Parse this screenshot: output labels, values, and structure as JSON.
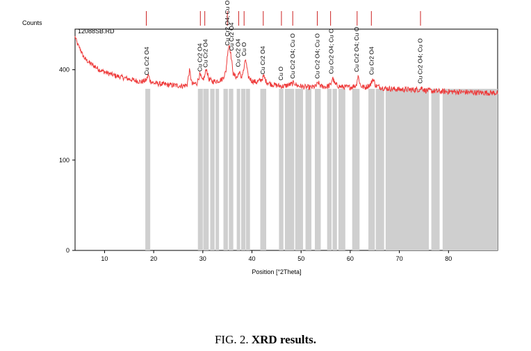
{
  "figure": {
    "caption_prefix": "FIG. 2.",
    "caption_title": "XRD results."
  },
  "chart_data": {
    "type": "line",
    "file_label": "12088SB.RD",
    "xlabel": "Position [°2Theta]",
    "ylabel": "Counts",
    "xlim": [
      4,
      90
    ],
    "ylim": [
      0,
      600
    ],
    "y_scale": "sqrt",
    "x_ticks": [
      10,
      20,
      30,
      40,
      50,
      60,
      70,
      80
    ],
    "y_ticks": [
      0,
      100,
      400
    ],
    "colors": {
      "pattern": "#ee3b3b",
      "reference_bars": "#cfcfcf",
      "markers": "#cc2222"
    },
    "pattern_points": [
      [
        4.0,
        560
      ],
      [
        4.5,
        520
      ],
      [
        5.0,
        500
      ],
      [
        5.5,
        470
      ],
      [
        6.0,
        450
      ],
      [
        7.0,
        430
      ],
      [
        8.0,
        415
      ],
      [
        9.0,
        400
      ],
      [
        10,
        390
      ],
      [
        12,
        375
      ],
      [
        14,
        365
      ],
      [
        16,
        355
      ],
      [
        17.5,
        348
      ],
      [
        18.5,
        355
      ],
      [
        18.9,
        378
      ],
      [
        19.3,
        352
      ],
      [
        20,
        343
      ],
      [
        22,
        338
      ],
      [
        24,
        334
      ],
      [
        26,
        332
      ],
      [
        26.8,
        336
      ],
      [
        27.3,
        398
      ],
      [
        27.8,
        338
      ],
      [
        28.8,
        343
      ],
      [
        29.4,
        380
      ],
      [
        29.9,
        352
      ],
      [
        30.4,
        372
      ],
      [
        30.7,
        408
      ],
      [
        31.2,
        360
      ],
      [
        32,
        350
      ],
      [
        33,
        352
      ],
      [
        34,
        360
      ],
      [
        34.7,
        392
      ],
      [
        35.1,
        490
      ],
      [
        35.4,
        520
      ],
      [
        35.7,
        470
      ],
      [
        36.2,
        380
      ],
      [
        37,
        365
      ],
      [
        37.4,
        392
      ],
      [
        37.8,
        366
      ],
      [
        38.3,
        395
      ],
      [
        38.7,
        450
      ],
      [
        39.2,
        372
      ],
      [
        40,
        352
      ],
      [
        41,
        347
      ],
      [
        42,
        358
      ],
      [
        42.4,
        372
      ],
      [
        42.9,
        349
      ],
      [
        44,
        338
      ],
      [
        45.5,
        332
      ],
      [
        46.2,
        330
      ],
      [
        47,
        333
      ],
      [
        48.2,
        340
      ],
      [
        48.6,
        345
      ],
      [
        49.1,
        334
      ],
      [
        50.5,
        328
      ],
      [
        52,
        325
      ],
      [
        53,
        330
      ],
      [
        53.5,
        345
      ],
      [
        54,
        330
      ],
      [
        55,
        328
      ],
      [
        56,
        334
      ],
      [
        56.4,
        366
      ],
      [
        56.9,
        338
      ],
      [
        58,
        328
      ],
      [
        60,
        326
      ],
      [
        61.2,
        334
      ],
      [
        61.6,
        374
      ],
      [
        62.1,
        332
      ],
      [
        63,
        325
      ],
      [
        64.2,
        338
      ],
      [
        64.6,
        362
      ],
      [
        65.2,
        332
      ],
      [
        67,
        322
      ],
      [
        70,
        318
      ],
      [
        73,
        316
      ],
      [
        74.2,
        318
      ],
      [
        74.6,
        325
      ],
      [
        75.1,
        314
      ],
      [
        78,
        310
      ],
      [
        82,
        308
      ],
      [
        86,
        305
      ],
      [
        90,
        304
      ]
    ],
    "reference_bars": [
      [
        18.3,
        19.3
      ],
      [
        29.0,
        30.0
      ],
      [
        30.1,
        31.2
      ],
      [
        31.5,
        32.4
      ],
      [
        32.6,
        33.3
      ],
      [
        34.2,
        35.1
      ],
      [
        35.3,
        36.2
      ],
      [
        36.9,
        37.6
      ],
      [
        37.8,
        38.7
      ],
      [
        38.8,
        39.6
      ],
      [
        41.7,
        42.9
      ],
      [
        45.5,
        46.4
      ],
      [
        46.7,
        48.6
      ],
      [
        48.8,
        50.4
      ],
      [
        50.9,
        52.1
      ],
      [
        52.8,
        54.0
      ],
      [
        55.3,
        56.2
      ],
      [
        56.4,
        57.3
      ],
      [
        57.6,
        59.0
      ],
      [
        60.4,
        61.9
      ],
      [
        63.7,
        65.0
      ],
      [
        65.2,
        66.9
      ],
      [
        67.2,
        76.0
      ],
      [
        76.5,
        78.2
      ],
      [
        78.8,
        90.0
      ]
    ],
    "reference_bar_top": 320,
    "top_markers": [
      18.5,
      29.5,
      30.4,
      35.0,
      37.3,
      38.4,
      42.3,
      46.0,
      48.3,
      53.3,
      56.0,
      61.4,
      64.3,
      74.3
    ],
    "annotations": [
      {
        "x": 18.7,
        "y": 365,
        "text": "Cu Cr2 O4"
      },
      {
        "x": 29.5,
        "y": 380,
        "text": "Cu Cr2 O4"
      },
      {
        "x": 30.6,
        "y": 398,
        "text": "Cu Cr2 O4"
      },
      {
        "x": 35.1,
        "y": 500,
        "text": "Cu Cr2 O4; Cu O"
      },
      {
        "x": 35.9,
        "y": 475,
        "text": "Cu Cr2 O4"
      },
      {
        "x": 37.3,
        "y": 400,
        "text": "Cu Cr2 O4"
      },
      {
        "x": 38.5,
        "y": 450,
        "text": "Cu O"
      },
      {
        "x": 42.3,
        "y": 368,
        "text": "Cu Cr2 O4"
      },
      {
        "x": 46.0,
        "y": 343,
        "text": "Cu O"
      },
      {
        "x": 48.4,
        "y": 350,
        "text": "Cu Cr2 O4; Cu O"
      },
      {
        "x": 53.4,
        "y": 350,
        "text": "Cu Cr2 O4; Cu O"
      },
      {
        "x": 56.2,
        "y": 370,
        "text": "Cu Cr2 O4; Cu O"
      },
      {
        "x": 61.4,
        "y": 378,
        "text": "Cu Cr2 O4; Cu O"
      },
      {
        "x": 64.4,
        "y": 366,
        "text": "Cu Cr2 O4"
      },
      {
        "x": 74.3,
        "y": 330,
        "text": "Cu Cr2 O4; Cu O"
      }
    ]
  }
}
